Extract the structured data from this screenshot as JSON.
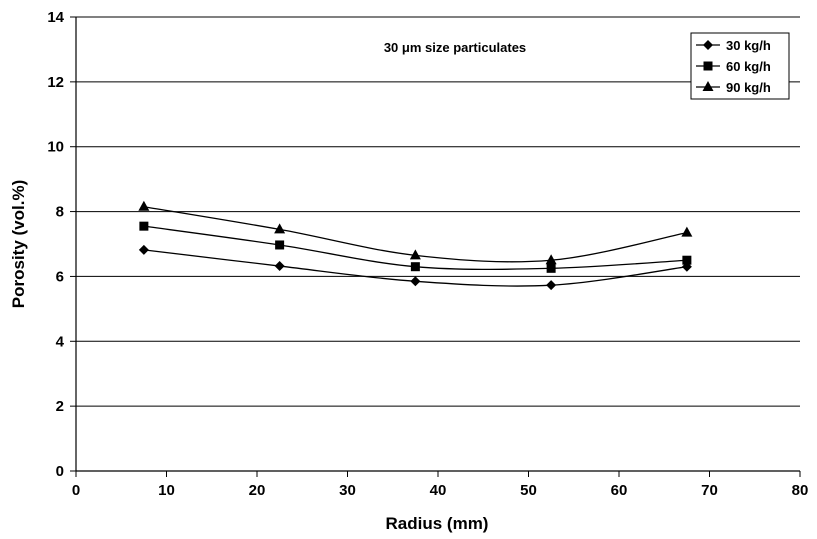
{
  "chart_data": {
    "type": "line",
    "title": "",
    "annotation": "30 μm size particulates",
    "xlabel": "Radius (mm)",
    "ylabel": "Porosity (vol.%)",
    "xlim": [
      0,
      80
    ],
    "ylim": [
      0,
      14
    ],
    "xticks": [
      "0",
      "10",
      "20",
      "30",
      "40",
      "50",
      "60",
      "70",
      "80"
    ],
    "yticks": [
      "0",
      "2",
      "4",
      "6",
      "8",
      "10",
      "12",
      "14"
    ],
    "grid": "horizontal",
    "legend_position": "top-right",
    "x": [
      7.5,
      22.5,
      37.5,
      52.5,
      67.5
    ],
    "series": [
      {
        "name": "30 kg/h",
        "marker": "diamond",
        "values": [
          6.82,
          6.32,
          5.85,
          5.73,
          6.3
        ]
      },
      {
        "name": "60 kg/h",
        "marker": "square",
        "values": [
          7.55,
          6.97,
          6.3,
          6.25,
          6.5
        ]
      },
      {
        "name": "90 kg/h",
        "marker": "triangle",
        "values": [
          8.15,
          7.45,
          6.65,
          6.5,
          7.35
        ]
      }
    ],
    "colors": {
      "line": "#000000",
      "grid": "#000000",
      "background": "#ffffff"
    }
  }
}
